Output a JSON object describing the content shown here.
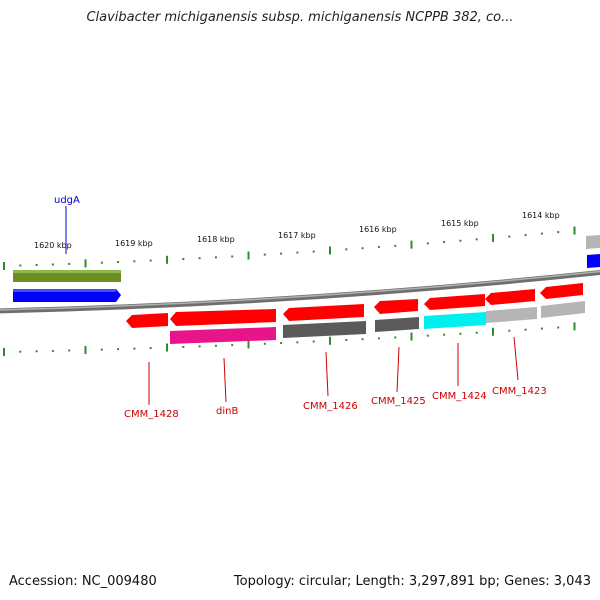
{
  "title": "Clavibacter michiganensis subsp. michiganensis NCPPB 382, co...",
  "footer": {
    "accession": "Accession: NC_009480",
    "summary": "Topology: circular; Length: 3,297,891 bp; Genes: 3,043"
  },
  "colors": {
    "backbone": "#8a8a8a",
    "ticks": "#2e8b2e",
    "forward_label": "#0000cc",
    "reverse_label": "#cc0000",
    "red": "#ff0000",
    "darkgray": "#5a5a5a",
    "lightgray": "#b5b5b5",
    "magenta": "#e8158a",
    "cyan": "#00f0f0",
    "olive": "#6b8e23",
    "blue": "#0000ff"
  },
  "scale": {
    "unit": "kbp",
    "labels": [
      "1620 kbp",
      "1619 kbp",
      "1618 kbp",
      "1617 kbp",
      "1616 kbp",
      "1615 kbp",
      "1614 kbp"
    ]
  },
  "gene_labels": {
    "udgA": "udgA",
    "CMM_1428": "CMM_1428",
    "dinB": "dinB",
    "CMM_1426": "CMM_1426",
    "CMM_1425": "CMM_1425",
    "CMM_1424": "CMM_1424",
    "CMM_1423": "CMM_1423"
  }
}
